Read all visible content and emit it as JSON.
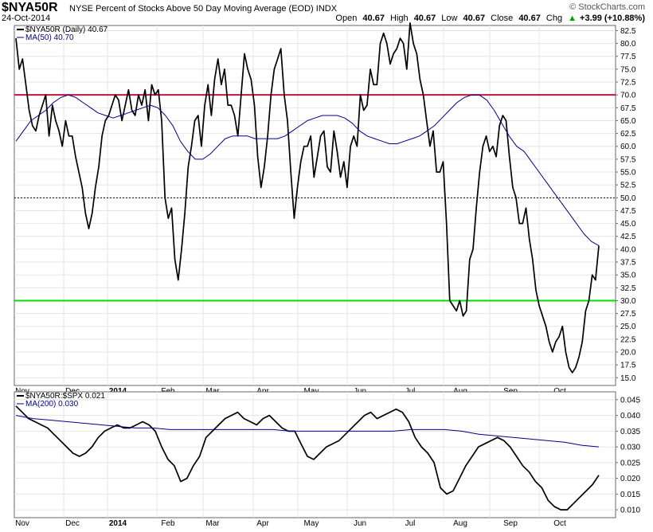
{
  "header": {
    "symbol": "$NYA50R",
    "description": "NYSE Percent of Stocks Above 50 Day Moving Average (EOD)  INDX",
    "date": "24-Oct-2014",
    "brand": "© StockCharts.com",
    "open_label": "Open",
    "open": "40.67",
    "high_label": "High",
    "high": "40.67",
    "low_label": "Low",
    "low": "40.67",
    "close_label": "Close",
    "close": "40.67",
    "chg_label": "Chg",
    "chg": "+3.99 (+10.88%)",
    "chg_arrow": "▲",
    "chg_color": "#00a000"
  },
  "chart_data": [
    {
      "type": "line",
      "title": "$NYA50R NYSE Percent of Stocks Above 50 Day Moving Average (EOD)",
      "x_labels": [
        "Nov",
        "Dec",
        "2014",
        "Feb",
        "Mar",
        "Apr",
        "May",
        "Jun",
        "Jul",
        "Aug",
        "Sep",
        "Oct"
      ],
      "ylim": [
        13.5,
        83.5
      ],
      "y_ticks": [
        "82.5",
        "80.0",
        "77.5",
        "75.0",
        "72.5",
        "70.0",
        "67.5",
        "65.0",
        "62.5",
        "60.0",
        "57.5",
        "55.0",
        "52.5",
        "50.0",
        "47.5",
        "45.0",
        "42.5",
        "40.0",
        "37.5",
        "35.0",
        "32.5",
        "30.0",
        "27.5",
        "25.0",
        "22.5",
        "20.0",
        "17.5",
        "15.0"
      ],
      "reference_lines": [
        {
          "value": 70,
          "color": "#c0143c",
          "style": "solid"
        },
        {
          "value": 50,
          "color": "#000000",
          "style": "dotted"
        },
        {
          "value": 30,
          "color": "#00dd00",
          "style": "solid"
        }
      ],
      "series": [
        {
          "name": "$NYA50R (Daily) 40.67",
          "color": "#000000",
          "values": [
            81,
            75,
            77,
            72,
            67,
            64,
            63,
            66,
            68,
            70,
            62,
            68,
            65,
            63,
            60,
            65,
            62,
            62,
            58,
            55,
            52,
            47,
            44,
            47,
            52,
            56,
            62,
            65,
            66,
            68,
            70,
            69,
            65,
            68,
            71,
            67,
            66,
            70,
            68,
            71,
            65,
            72,
            70,
            71,
            65,
            50,
            46,
            48,
            38,
            34,
            40,
            47,
            56,
            60,
            65,
            66,
            60,
            68,
            72,
            66,
            73,
            77,
            72,
            75,
            68,
            68,
            66,
            62,
            70,
            78,
            75,
            73,
            68,
            58,
            52,
            56,
            62,
            70,
            75,
            77,
            79,
            70,
            65,
            55,
            46,
            52,
            57,
            60,
            60,
            62,
            54,
            58,
            62,
            63,
            56,
            55,
            63,
            59,
            54,
            57,
            52,
            60,
            62,
            60,
            70,
            67,
            68,
            75,
            72,
            72,
            80,
            82,
            80,
            76,
            78,
            79,
            81,
            80,
            75,
            84,
            80,
            78,
            73,
            70,
            65,
            60,
            63,
            55,
            55,
            57,
            45,
            30,
            29,
            28,
            30,
            27,
            28,
            38,
            40,
            48,
            55,
            60,
            62,
            59,
            60,
            58,
            64,
            66,
            65,
            58,
            52,
            50,
            45,
            45,
            48,
            42,
            38,
            32,
            29,
            27,
            25,
            22,
            20,
            22,
            23,
            25,
            20,
            17,
            16,
            17,
            19,
            22,
            28,
            30,
            35,
            34,
            40.67
          ],
          "y_range": [
            13.5,
            83.5
          ]
        },
        {
          "name": "MA(50) 40.70",
          "color": "#00008b",
          "values": [
            61,
            63,
            65,
            66,
            67,
            68.5,
            69.5,
            70,
            69.5,
            68.5,
            67.5,
            66.5,
            66,
            65.5,
            66,
            66.5,
            67,
            67.5,
            68,
            67.5,
            66,
            64,
            61,
            59,
            57.5,
            57.5,
            58.5,
            60,
            61.5,
            62,
            62,
            62,
            61.5,
            61.5,
            61.5,
            61.5,
            62,
            63,
            64,
            65,
            65.5,
            66,
            66,
            66,
            65.5,
            64.5,
            63,
            62,
            61.5,
            61,
            60.5,
            60.5,
            61,
            61.5,
            62,
            63,
            64,
            65.5,
            67,
            68.5,
            69.5,
            70,
            70,
            69,
            67,
            64.5,
            62,
            60,
            59,
            57,
            55,
            53,
            51,
            49,
            47,
            45,
            43,
            41.5,
            40.7
          ]
        }
      ]
    },
    {
      "type": "line",
      "title": "$NYA50R:$SPX ratio",
      "x_labels": [
        "Nov",
        "Dec",
        "2014",
        "Feb",
        "Mar",
        "Apr",
        "May",
        "Jun",
        "Jul",
        "Aug",
        "Sep",
        "Oct"
      ],
      "ylim": [
        0.0075,
        0.0475
      ],
      "y_ticks": [
        "0.045",
        "0.040",
        "0.035",
        "0.030",
        "0.025",
        "0.020",
        "0.015",
        "0.010"
      ],
      "series": [
        {
          "name": "$NYA50R:$SPX 0.021",
          "color": "#000000",
          "values": [
            0.043,
            0.041,
            0.039,
            0.038,
            0.037,
            0.036,
            0.034,
            0.032,
            0.03,
            0.028,
            0.027,
            0.028,
            0.03,
            0.033,
            0.035,
            0.036,
            0.037,
            0.036,
            0.036,
            0.037,
            0.038,
            0.037,
            0.035,
            0.03,
            0.026,
            0.024,
            0.019,
            0.02,
            0.024,
            0.027,
            0.033,
            0.035,
            0.037,
            0.039,
            0.04,
            0.041,
            0.039,
            0.038,
            0.037,
            0.039,
            0.04,
            0.038,
            0.036,
            0.035,
            0.035,
            0.031,
            0.027,
            0.026,
            0.028,
            0.03,
            0.031,
            0.032,
            0.034,
            0.036,
            0.038,
            0.04,
            0.041,
            0.039,
            0.04,
            0.041,
            0.042,
            0.041,
            0.038,
            0.033,
            0.03,
            0.028,
            0.025,
            0.017,
            0.015,
            0.016,
            0.02,
            0.024,
            0.027,
            0.03,
            0.031,
            0.032,
            0.033,
            0.032,
            0.03,
            0.027,
            0.024,
            0.022,
            0.019,
            0.017,
            0.013,
            0.011,
            0.01,
            0.01,
            0.012,
            0.014,
            0.016,
            0.018,
            0.021
          ]
        },
        {
          "name": "MA(200) 0.030",
          "color": "#00008b",
          "values": [
            0.04,
            0.039,
            0.0385,
            0.038,
            0.0375,
            0.037,
            0.0365,
            0.036,
            0.036,
            0.0355,
            0.0355,
            0.0355,
            0.0355,
            0.0355,
            0.0355,
            0.0355,
            0.035,
            0.035,
            0.035,
            0.035,
            0.035,
            0.035,
            0.035,
            0.0355,
            0.0355,
            0.0355,
            0.035,
            0.034,
            0.0335,
            0.033,
            0.0325,
            0.032,
            0.0315,
            0.0305,
            0.03
          ]
        }
      ]
    }
  ]
}
